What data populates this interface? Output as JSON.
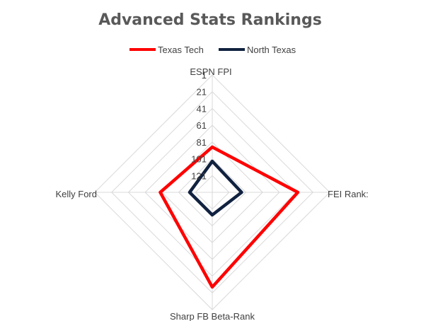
{
  "chart_data": {
    "type": "radar",
    "title": "Advanced Stats Rankings",
    "axes": [
      "ESPN FPI",
      "FEI Rank:",
      "Sharp FB Beta-Rank",
      "Kelly Ford"
    ],
    "ticks": [
      1,
      21,
      41,
      61,
      81,
      101,
      121
    ],
    "range": [
      1,
      141
    ],
    "reversed": true,
    "legend_position": "top",
    "series": [
      {
        "name": "Texas Tech",
        "color": "#ff0000",
        "values": [
          87,
          39,
          28,
          79
        ]
      },
      {
        "name": "North Texas",
        "color": "#112240",
        "values": [
          104,
          106,
          114,
          114
        ]
      }
    ],
    "grid_color": "#d9d9d9"
  }
}
